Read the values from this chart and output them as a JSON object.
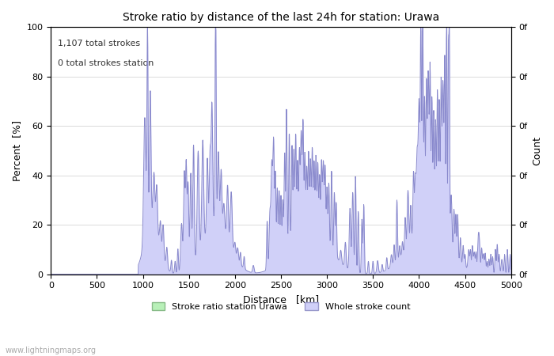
{
  "title": "Stroke ratio by distance of the last 24h for station: Urawa",
  "xlabel": "Distance   [km]",
  "ylabel": "Percent  [%]",
  "ylabel_right": "Count",
  "annotation_line1": "1,107 total strokes",
  "annotation_line2": "0 total strokes station",
  "xlim": [
    0,
    5000
  ],
  "ylim": [
    0,
    100
  ],
  "xticks": [
    0,
    500,
    1000,
    1500,
    2000,
    2500,
    3000,
    3500,
    4000,
    4500,
    5000
  ],
  "yticks": [
    0,
    20,
    40,
    60,
    80,
    100
  ],
  "right_ytick_label": "0f",
  "fill_color_green": "#b8f0b8",
  "fill_color_blue": "#d0d0f8",
  "line_color": "#8888cc",
  "background_color": "#ffffff",
  "legend_label_green": "Stroke ratio station Urawa",
  "legend_label_blue": "Whole stroke count",
  "watermark": "www.lightningmaps.org",
  "grid_color": "#cccccc",
  "title_fontsize": 10,
  "label_fontsize": 9,
  "tick_fontsize": 8,
  "annot_fontsize": 8
}
